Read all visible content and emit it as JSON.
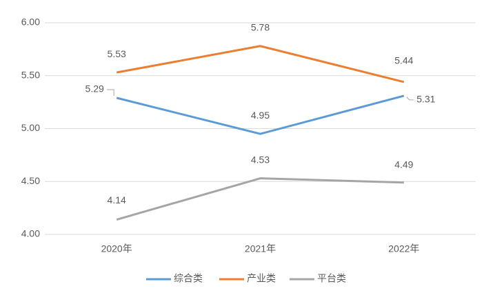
{
  "chart_data": {
    "type": "line",
    "categories": [
      "2020年",
      "2021年",
      "2022年"
    ],
    "series": [
      {
        "name": "综合类",
        "color": "#5b9bd5",
        "values": [
          5.29,
          4.95,
          5.31
        ]
      },
      {
        "name": "产业类",
        "color": "#ed7d31",
        "values": [
          5.53,
          5.78,
          5.44
        ]
      },
      {
        "name": "平台类",
        "color": "#a5a5a5",
        "values": [
          4.14,
          4.53,
          4.49
        ]
      }
    ],
    "ylim": [
      4,
      6
    ],
    "yticks": [
      {
        "value": 4,
        "label": "4.00"
      },
      {
        "value": 4.5,
        "label": "4.50"
      },
      {
        "value": 5,
        "label": "5.00"
      },
      {
        "value": 5.5,
        "label": "5.50"
      },
      {
        "value": 6,
        "label": "6.00"
      }
    ],
    "grid": true,
    "legend": "bottom"
  }
}
